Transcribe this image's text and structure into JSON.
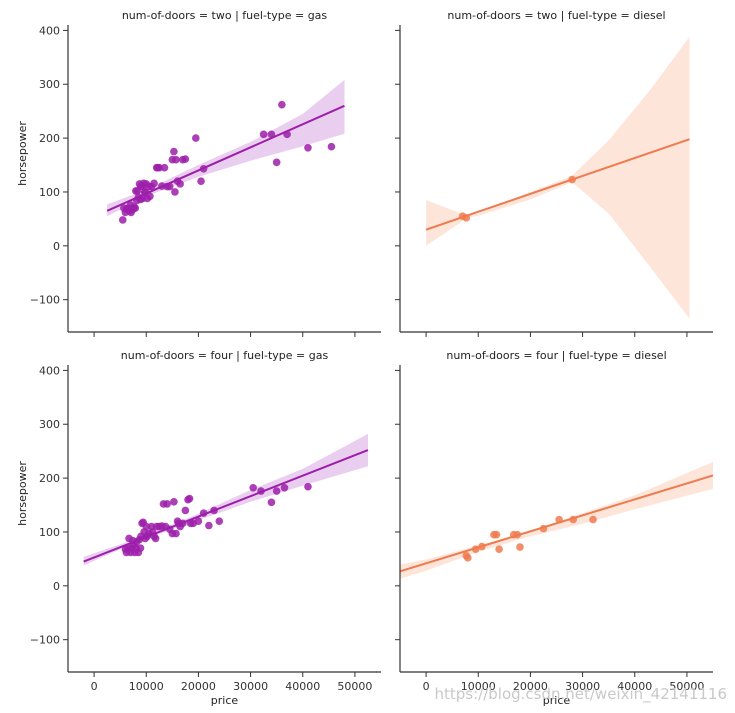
{
  "chart_data": {
    "type": "scatter",
    "facet_layout": "2x2 grid (rows: num-of-doors, cols: fuel-type)",
    "shared_x": {
      "label": "price",
      "xlim": [
        -5000,
        55000
      ],
      "ticks": [
        0,
        10000,
        20000,
        30000,
        40000,
        50000
      ]
    },
    "shared_y": {
      "label": "horsepower",
      "ylim": [
        -160,
        410
      ],
      "ticks": [
        -100,
        0,
        100,
        200,
        300,
        400
      ]
    },
    "panels": [
      {
        "title": "num-of-doors = two | fuel-type = gas",
        "color": "#9c1faa",
        "band_color": "#e6c6ec",
        "regression": {
          "x": [
            2500,
            48000
          ],
          "y": [
            65,
            260
          ]
        },
        "band": {
          "x": [
            2500,
            10000,
            20000,
            30000,
            40000,
            48000
          ],
          "lower": [
            55,
            92,
            128,
            158,
            185,
            208
          ],
          "upper": [
            77,
            104,
            150,
            193,
            245,
            308
          ]
        },
        "points": [
          [
            5500,
            48
          ],
          [
            5700,
            70
          ],
          [
            6000,
            62
          ],
          [
            6200,
            68
          ],
          [
            6500,
            70
          ],
          [
            6800,
            65
          ],
          [
            7000,
            76
          ],
          [
            7100,
            62
          ],
          [
            7300,
            70
          ],
          [
            7500,
            68
          ],
          [
            7700,
            72
          ],
          [
            7900,
            70
          ],
          [
            8000,
            102
          ],
          [
            8200,
            84
          ],
          [
            8300,
            102
          ],
          [
            8500,
            90
          ],
          [
            8700,
            115
          ],
          [
            8900,
            86
          ],
          [
            9000,
            111
          ],
          [
            9200,
            111
          ],
          [
            9300,
            88
          ],
          [
            9500,
            116
          ],
          [
            9700,
            100
          ],
          [
            9800,
            100
          ],
          [
            10000,
            115
          ],
          [
            10200,
            88
          ],
          [
            10500,
            110
          ],
          [
            10700,
            92
          ],
          [
            11000,
            110
          ],
          [
            11500,
            116
          ],
          [
            12000,
            145
          ],
          [
            12200,
            145
          ],
          [
            12500,
            145
          ],
          [
            13000,
            111
          ],
          [
            13500,
            145
          ],
          [
            14000,
            110
          ],
          [
            14500,
            110
          ],
          [
            15000,
            160
          ],
          [
            15300,
            175
          ],
          [
            15500,
            100
          ],
          [
            15700,
            160
          ],
          [
            16000,
            120
          ],
          [
            16500,
            115
          ],
          [
            17000,
            160
          ],
          [
            17500,
            161
          ],
          [
            19500,
            200
          ],
          [
            20500,
            120
          ],
          [
            21000,
            143
          ],
          [
            32500,
            207
          ],
          [
            34000,
            207
          ],
          [
            35000,
            155
          ],
          [
            36000,
            262
          ],
          [
            37000,
            207
          ],
          [
            41000,
            182
          ],
          [
            45500,
            184
          ]
        ]
      },
      {
        "title": "num-of-doors = two | fuel-type = diesel",
        "color": "#ee7b4f",
        "band_color": "#fde0d4",
        "regression": {
          "x": [
            0,
            50500
          ],
          "y": [
            30,
            198
          ]
        },
        "band": {
          "x": [
            0,
            7500,
            8500,
            10000,
            20000,
            28000,
            35000,
            43000,
            50500
          ],
          "lower": [
            0,
            49,
            53,
            56,
            86,
            118,
            60,
            -40,
            -135
          ],
          "upper": [
            85,
            57,
            58,
            60,
            100,
            130,
            196,
            290,
            388
          ]
        },
        "points": [
          [
            7000,
            55
          ],
          [
            7700,
            52
          ],
          [
            28000,
            123
          ]
        ]
      },
      {
        "title": "num-of-doors = four | fuel-type = gas",
        "color": "#9c1faa",
        "band_color": "#e6c6ec",
        "regression": {
          "x": [
            -2000,
            52500
          ],
          "y": [
            45,
            252
          ]
        },
        "band": {
          "x": [
            -2000,
            5000,
            10000,
            20000,
            30000,
            40000,
            52500
          ],
          "lower": [
            38,
            68,
            88,
            122,
            156,
            186,
            222
          ],
          "upper": [
            54,
            77,
            95,
            134,
            178,
            217,
            282
          ]
        },
        "points": [
          [
            6000,
            68
          ],
          [
            6200,
            62
          ],
          [
            6500,
            70
          ],
          [
            6700,
            88
          ],
          [
            7000,
            62
          ],
          [
            7200,
            70
          ],
          [
            7400,
            84
          ],
          [
            7600,
            76
          ],
          [
            7800,
            62
          ],
          [
            8000,
            70
          ],
          [
            8200,
            82
          ],
          [
            8500,
            62
          ],
          [
            8700,
            86
          ],
          [
            8900,
            70
          ],
          [
            9000,
            92
          ],
          [
            9200,
            116
          ],
          [
            9400,
            118
          ],
          [
            9600,
            100
          ],
          [
            9800,
            88
          ],
          [
            10000,
            110
          ],
          [
            10200,
            92
          ],
          [
            10500,
            97
          ],
          [
            11000,
            110
          ],
          [
            11200,
            100
          ],
          [
            11500,
            92
          ],
          [
            11800,
            88
          ],
          [
            12000,
            110
          ],
          [
            12500,
            110
          ],
          [
            13000,
            111
          ],
          [
            13300,
            152
          ],
          [
            13700,
            110
          ],
          [
            14000,
            152
          ],
          [
            14500,
            105
          ],
          [
            15000,
            97
          ],
          [
            15300,
            156
          ],
          [
            15700,
            97
          ],
          [
            16000,
            120
          ],
          [
            16200,
            116
          ],
          [
            16500,
            110
          ],
          [
            17000,
            116
          ],
          [
            17500,
            140
          ],
          [
            18000,
            160
          ],
          [
            18300,
            162
          ],
          [
            18500,
            116
          ],
          [
            19000,
            116
          ],
          [
            20000,
            120
          ],
          [
            21000,
            135
          ],
          [
            22000,
            112
          ],
          [
            23000,
            140
          ],
          [
            24000,
            120
          ],
          [
            30500,
            182
          ],
          [
            32000,
            176
          ],
          [
            34000,
            155
          ],
          [
            35000,
            176
          ],
          [
            36500,
            182
          ],
          [
            41000,
            184
          ]
        ]
      },
      {
        "title": "num-of-doors = four | fuel-type = diesel",
        "color": "#ee7b4f",
        "band_color": "#fde0d4",
        "regression": {
          "x": [
            -5000,
            55000
          ],
          "y": [
            27,
            205
          ]
        },
        "band": {
          "x": [
            -5000,
            0,
            10000,
            20000,
            30000,
            40000,
            55000
          ],
          "lower": [
            13,
            28,
            63,
            92,
            115,
            142,
            180
          ],
          "upper": [
            39,
            49,
            75,
            102,
            135,
            168,
            230
          ]
        },
        "points": [
          [
            7700,
            56
          ],
          [
            8000,
            52
          ],
          [
            9500,
            68
          ],
          [
            10700,
            73
          ],
          [
            13000,
            95
          ],
          [
            13500,
            95
          ],
          [
            14000,
            68
          ],
          [
            16800,
            95
          ],
          [
            17500,
            95
          ],
          [
            18000,
            72
          ],
          [
            22500,
            106
          ],
          [
            25500,
            123
          ],
          [
            28200,
            123
          ],
          [
            32000,
            123
          ]
        ]
      }
    ]
  },
  "watermark": "https://blog.csdn.net/weixin_42141116"
}
